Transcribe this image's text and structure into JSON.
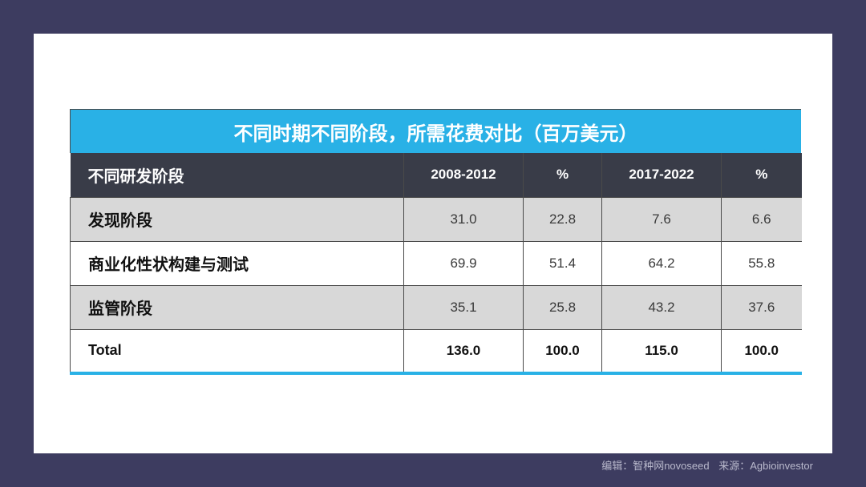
{
  "chart_data": {
    "type": "table",
    "title": "不同时期不同阶段，所需花费对比（百万美元）",
    "columns": [
      "不同研发阶段",
      "2008-2012",
      "%",
      "2017-2022",
      "%"
    ],
    "rows": [
      {
        "stage": "发现阶段",
        "v2008_2012": "31.0",
        "pct1": "22.8",
        "v2017_2022": "7.6",
        "pct2": "6.6"
      },
      {
        "stage": "商业化性状构建与测试",
        "v2008_2012": "69.9",
        "pct1": "51.4",
        "v2017_2022": "64.2",
        "pct2": "55.8"
      },
      {
        "stage": "监管阶段",
        "v2008_2012": "35.1",
        "pct1": "25.8",
        "v2017_2022": "43.2",
        "pct2": "37.6"
      },
      {
        "stage": "Total",
        "v2008_2012": "136.0",
        "pct1": "100.0",
        "v2017_2022": "115.0",
        "pct2": "100.0"
      }
    ]
  },
  "footer": {
    "editor": "编辑：智种网novoseed",
    "source": "来源：Agbioinvestor"
  },
  "colors": {
    "background": "#3d3c60",
    "title_bar": "#29b1e6",
    "header_row": "#393c48",
    "row_shade": "#d8d8d8"
  }
}
